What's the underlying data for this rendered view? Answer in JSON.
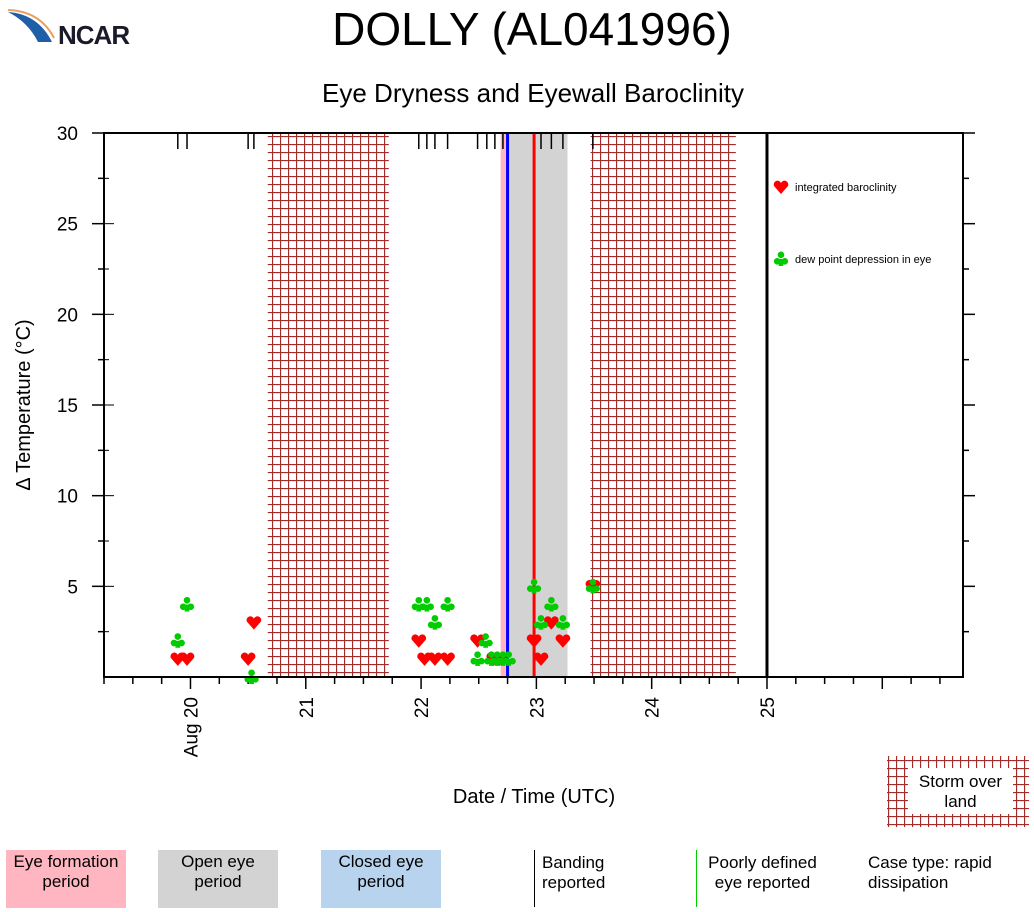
{
  "header": {
    "logo": "NCAR",
    "title": "DOLLY (AL041996)",
    "subtitle": "Eye Dryness and Eyewall Baroclinity"
  },
  "chart_data": {
    "type": "scatter",
    "title": "Eye Dryness and Eyewall Baroclinity",
    "xlabel": "Date / Time (UTC)",
    "ylabel": "Δ Temperature (°C)",
    "xlim": [
      19.25,
      26.7
    ],
    "ylim": [
      0,
      30
    ],
    "x_ticks": [
      {
        "v": 20,
        "label": "Aug 20"
      },
      {
        "v": 21,
        "label": "21"
      },
      {
        "v": 22,
        "label": "22"
      },
      {
        "v": 23,
        "label": "23"
      },
      {
        "v": 24,
        "label": "24"
      },
      {
        "v": 25,
        "label": "25"
      }
    ],
    "y_ticks": [
      5,
      10,
      15,
      20,
      25,
      30
    ],
    "series": [
      {
        "name": "integrated baroclinity",
        "marker": "heart",
        "color": "#ff0000",
        "points": [
          [
            19.89,
            1
          ],
          [
            19.97,
            1
          ],
          [
            20.5,
            1
          ],
          [
            20.55,
            3
          ],
          [
            21.98,
            2
          ],
          [
            22.03,
            1
          ],
          [
            22.12,
            1
          ],
          [
            22.23,
            1
          ],
          [
            22.49,
            2
          ],
          [
            22.63,
            1
          ],
          [
            22.68,
            1
          ],
          [
            22.98,
            2
          ],
          [
            23.04,
            1
          ],
          [
            23.13,
            3
          ],
          [
            23.23,
            2
          ],
          [
            23.49,
            5
          ]
        ]
      },
      {
        "name": "dew point depression in eye",
        "marker": "club",
        "color": "#00cc00",
        "points": [
          [
            19.89,
            2
          ],
          [
            19.97,
            4
          ],
          [
            20.53,
            0
          ],
          [
            21.98,
            4
          ],
          [
            22.05,
            4
          ],
          [
            22.12,
            3
          ],
          [
            22.23,
            4
          ],
          [
            22.49,
            1
          ],
          [
            22.56,
            2
          ],
          [
            22.61,
            1
          ],
          [
            22.66,
            1
          ],
          [
            22.71,
            1
          ],
          [
            22.76,
            1
          ],
          [
            22.98,
            5
          ],
          [
            23.04,
            3
          ],
          [
            23.13,
            4
          ],
          [
            23.23,
            3
          ],
          [
            23.49,
            5
          ]
        ]
      }
    ],
    "banding_reported": [
      19.89,
      19.97,
      20.5,
      20.55,
      21.98,
      22.05,
      22.12,
      22.23,
      22.49,
      22.57,
      22.64,
      22.71,
      23.04,
      23.13,
      23.23,
      23.49
    ],
    "eye_formation_period": [
      22.69,
      22.75
    ],
    "open_eye_period": [
      22.75,
      23.27
    ],
    "storm_over_land": [
      [
        20.67,
        21.72
      ],
      [
        23.47,
        24.73
      ]
    ],
    "closed_eye_line": 22.75,
    "rapid_dissipation_line": 22.98,
    "end_line": 25.0,
    "legend": {
      "placement": "top-right",
      "heart": "integrated baroclinity",
      "club": "dew point depression in eye"
    },
    "colors": {
      "eye_formation": "#ffb6c1",
      "open_eye": "#d3d3d3",
      "closed_eye": "#b8d3ee",
      "land_hatch": "#a52a2a",
      "blue_line": "#0000ff",
      "red_line": "#ff0000"
    }
  },
  "footer": {
    "storm_over_land": "Storm over land",
    "eye_formation": "Eye formation period",
    "open_eye": "Open eye period",
    "closed_eye": "Closed eye period",
    "banding": "Banding reported",
    "poorly_defined": "Poorly defined eye reported",
    "case_type": "Case type: rapid dissipation"
  }
}
